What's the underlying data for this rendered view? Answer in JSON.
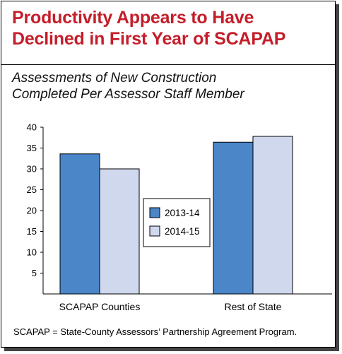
{
  "header": {
    "title_lines": [
      "Productivity Appears to Have",
      "Declined in First Year of SCAPAP"
    ],
    "subtitle_lines": [
      "Assessments of New Construction",
      "Completed Per Assessor Staff Member"
    ]
  },
  "chart_data": {
    "type": "bar",
    "categories": [
      "SCAPAP Counties",
      "Rest of State"
    ],
    "series": [
      {
        "name": "2013-14",
        "values": [
          33.6,
          36.4
        ],
        "color": "#4a86c8"
      },
      {
        "name": "2014-15",
        "values": [
          30.0,
          37.8
        ],
        "color": "#d0d8ee"
      }
    ],
    "ylim": [
      0,
      40
    ],
    "yticks": [
      5,
      10,
      15,
      20,
      25,
      30,
      35,
      40
    ],
    "grid": false,
    "legend_position": "center"
  },
  "footnote": "SCAPAP =  State-County Assessors’ Partnership Agreement Program.",
  "colors": {
    "title": "#c41e2a",
    "series_2013_14": "#4a86c8",
    "series_2014_15": "#d0d8ee"
  }
}
